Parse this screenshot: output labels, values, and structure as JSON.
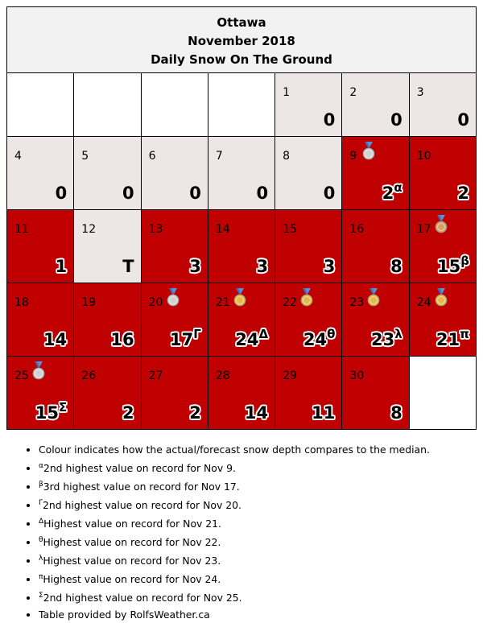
{
  "header": {
    "city": "Ottawa",
    "period": "November 2018",
    "title": "Daily Snow On The Ground"
  },
  "weeks": [
    [
      {
        "day": "",
        "value": "",
        "sup": "",
        "medal": "",
        "status": "empty"
      },
      {
        "day": "",
        "value": "",
        "sup": "",
        "medal": "",
        "status": "empty"
      },
      {
        "day": "",
        "value": "",
        "sup": "",
        "medal": "",
        "status": "empty"
      },
      {
        "day": "",
        "value": "",
        "sup": "",
        "medal": "",
        "status": "empty"
      },
      {
        "day": "1",
        "value": "0",
        "sup": "",
        "medal": "",
        "status": "normal"
      },
      {
        "day": "2",
        "value": "0",
        "sup": "",
        "medal": "",
        "status": "normal"
      },
      {
        "day": "3",
        "value": "0",
        "sup": "",
        "medal": "",
        "status": "normal"
      }
    ],
    [
      {
        "day": "4",
        "value": "0",
        "sup": "",
        "medal": "",
        "status": "normal"
      },
      {
        "day": "5",
        "value": "0",
        "sup": "",
        "medal": "",
        "status": "normal"
      },
      {
        "day": "6",
        "value": "0",
        "sup": "",
        "medal": "",
        "status": "normal"
      },
      {
        "day": "7",
        "value": "0",
        "sup": "",
        "medal": "",
        "status": "normal"
      },
      {
        "day": "8",
        "value": "0",
        "sup": "",
        "medal": "",
        "status": "normal"
      },
      {
        "day": "9",
        "value": "2",
        "sup": "α",
        "medal": "silver",
        "status": "above"
      },
      {
        "day": "10",
        "value": "2",
        "sup": "",
        "medal": "",
        "status": "above"
      }
    ],
    [
      {
        "day": "11",
        "value": "1",
        "sup": "",
        "medal": "",
        "status": "above"
      },
      {
        "day": "12",
        "value": "T",
        "sup": "",
        "medal": "",
        "status": "normal"
      },
      {
        "day": "13",
        "value": "3",
        "sup": "",
        "medal": "",
        "status": "above"
      },
      {
        "day": "14",
        "value": "3",
        "sup": "",
        "medal": "",
        "status": "above"
      },
      {
        "day": "15",
        "value": "3",
        "sup": "",
        "medal": "",
        "status": "above"
      },
      {
        "day": "16",
        "value": "8",
        "sup": "",
        "medal": "",
        "status": "above"
      },
      {
        "day": "17",
        "value": "15",
        "sup": "β",
        "medal": "bronze",
        "status": "above"
      }
    ],
    [
      {
        "day": "18",
        "value": "14",
        "sup": "",
        "medal": "",
        "status": "above"
      },
      {
        "day": "19",
        "value": "16",
        "sup": "",
        "medal": "",
        "status": "above"
      },
      {
        "day": "20",
        "value": "17",
        "sup": "Γ",
        "medal": "silver",
        "status": "above"
      },
      {
        "day": "21",
        "value": "24",
        "sup": "Δ",
        "medal": "gold",
        "status": "above"
      },
      {
        "day": "22",
        "value": "24",
        "sup": "θ",
        "medal": "gold",
        "status": "above"
      },
      {
        "day": "23",
        "value": "23",
        "sup": "λ",
        "medal": "gold",
        "status": "above"
      },
      {
        "day": "24",
        "value": "21",
        "sup": "π",
        "medal": "gold",
        "status": "above"
      }
    ],
    [
      {
        "day": "25",
        "value": "15",
        "sup": "Σ",
        "medal": "silver",
        "status": "above"
      },
      {
        "day": "26",
        "value": "2",
        "sup": "",
        "medal": "",
        "status": "above"
      },
      {
        "day": "27",
        "value": "2",
        "sup": "",
        "medal": "",
        "status": "above"
      },
      {
        "day": "28",
        "value": "14",
        "sup": "",
        "medal": "",
        "status": "above"
      },
      {
        "day": "29",
        "value": "11",
        "sup": "",
        "medal": "",
        "status": "above"
      },
      {
        "day": "30",
        "value": "8",
        "sup": "",
        "medal": "",
        "status": "above"
      },
      {
        "day": "",
        "value": "",
        "sup": "",
        "medal": "",
        "status": "empty"
      }
    ]
  ],
  "notes": [
    {
      "sup": "",
      "text": "Colour indicates how the actual/forecast snow depth compares to the median."
    },
    {
      "sup": "α",
      "text": "2nd highest value on record for Nov 9."
    },
    {
      "sup": "β",
      "text": "3rd highest value on record for Nov 17."
    },
    {
      "sup": "Γ",
      "text": "2nd highest value on record for Nov 20."
    },
    {
      "sup": "Δ",
      "text": "Highest value on record for Nov 21."
    },
    {
      "sup": "θ",
      "text": "Highest value on record for Nov 22."
    },
    {
      "sup": "λ",
      "text": "Highest value on record for Nov 23."
    },
    {
      "sup": "π",
      "text": "Highest value on record for Nov 24."
    },
    {
      "sup": "Σ",
      "text": "2nd highest value on record for Nov 25."
    },
    {
      "sup": "",
      "text": "Table provided by RolfsWeather.ca"
    }
  ],
  "colors": {
    "above_median": "#c00000",
    "near_median": "#ece6e6",
    "header_bg": "#f2f2f2",
    "gold": "#e6b84a",
    "silver": "#d0d0d0",
    "bronze": "#d9a066",
    "ribbon": "#5b8fd6"
  }
}
